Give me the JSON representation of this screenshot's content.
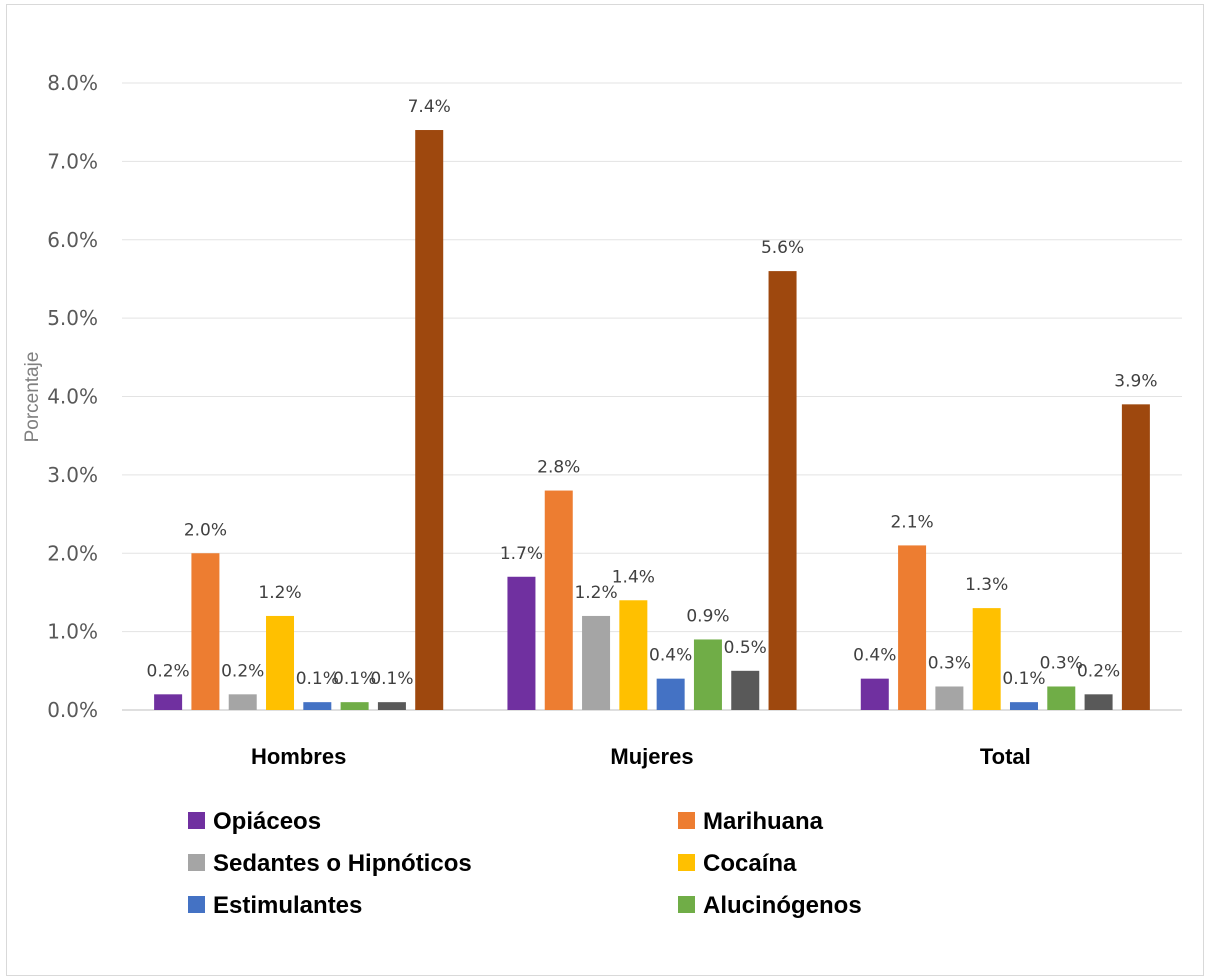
{
  "chart_data": {
    "type": "bar",
    "ylabel": "Porcentaje",
    "ylim": [
      0,
      8
    ],
    "y_ticks": [
      "0.0%",
      "1.0%",
      "2.0%",
      "3.0%",
      "4.0%",
      "5.0%",
      "6.0%",
      "7.0%",
      "8.0%"
    ],
    "grid": true,
    "categories": [
      "Hombres",
      "Mujeres",
      "Total"
    ],
    "legend_position": "bottom",
    "series": [
      {
        "name": "Opiáceos",
        "color": "#7030a0",
        "values": [
          0.2,
          1.7,
          0.4
        ],
        "labels": [
          "0.2%",
          "1.7%",
          "0.4%"
        ],
        "in_legend": true
      },
      {
        "name": "Marihuana",
        "color": "#ed7d31",
        "values": [
          2.0,
          2.8,
          2.1
        ],
        "labels": [
          "2.0%",
          "2.8%",
          "2.1%"
        ],
        "in_legend": true
      },
      {
        "name": "Sedantes o Hipnóticos",
        "color": "#a5a5a5",
        "values": [
          0.2,
          1.2,
          0.3
        ],
        "labels": [
          "0.2%",
          "1.2%",
          "0.3%"
        ],
        "in_legend": true
      },
      {
        "name": "Cocaína",
        "color": "#ffc000",
        "values": [
          1.2,
          1.4,
          1.3
        ],
        "labels": [
          "1.2%",
          "1.4%",
          "1.3%"
        ],
        "in_legend": true
      },
      {
        "name": "Estimulantes",
        "color": "#4472c4",
        "values": [
          0.1,
          0.4,
          0.1
        ],
        "labels": [
          "0.1%",
          "0.4%",
          "0.1%"
        ],
        "in_legend": true
      },
      {
        "name": "Alucinógenos",
        "color": "#70ad47",
        "values": [
          0.1,
          0.9,
          0.3
        ],
        "labels": [
          "0.1%",
          "0.9%",
          "0.3%"
        ],
        "in_legend": true
      },
      {
        "name": "",
        "color": "#595959",
        "values": [
          0.1,
          0.5,
          0.2
        ],
        "labels": [
          "0.1%",
          "0.5%",
          "0.2%"
        ],
        "in_legend": false
      },
      {
        "name": "",
        "color": "#9e480e",
        "values": [
          7.4,
          5.6,
          3.9
        ],
        "labels": [
          "7.4%",
          "5.6%",
          "3.9%"
        ],
        "in_legend": false
      }
    ]
  }
}
